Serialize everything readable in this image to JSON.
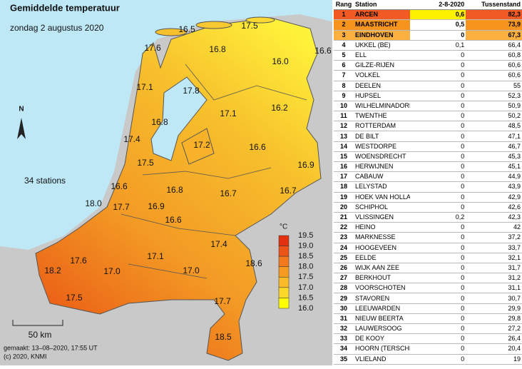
{
  "map": {
    "title": "Gemiddelde temperatuur",
    "subtitle": "zondag 2 augustus 2020",
    "stations_note": "34 stations",
    "north": "N",
    "scale": "50 km",
    "made": "gemaakt: 13–08–2020, 17:55 UT",
    "copyright": "(c) 2020, KNMI",
    "labels": [
      "16.5",
      "17.5",
      "16.6",
      "17.6",
      "16.8",
      "16.0",
      "17.1",
      "17.8",
      "16.2",
      "17.1",
      "16.8",
      "17.4",
      "17.2",
      "16.6",
      "17.5",
      "16.9",
      "16.6",
      "16.8",
      "16.7",
      "16.7",
      "18.0",
      "17.7",
      "16.9",
      "16.6",
      "17.1",
      "17.4",
      "18.6",
      "17.6",
      "18.2",
      "17.0",
      "17.0",
      "17.7",
      "17.5",
      "18.5"
    ],
    "legend": {
      "unit": "°C",
      "ticks": [
        "19.5",
        "19.0",
        "18.5",
        "18.0",
        "17.5",
        "17.0",
        "16.5",
        "16.0"
      ]
    }
  },
  "table": {
    "header": [
      "Rang",
      "Station",
      "2-8-2020",
      "Tussenstand"
    ],
    "rows": [
      [
        "1",
        "ARCEN",
        "0,6",
        "82,3"
      ],
      [
        "2",
        "MAASTRICHT",
        "0,5",
        "73,9"
      ],
      [
        "3",
        "EINDHOVEN",
        "0",
        "67,3"
      ],
      [
        "4",
        "UKKEL (BE)",
        "0,1",
        "66,4"
      ],
      [
        "5",
        "ELL",
        "0",
        "60,8"
      ],
      [
        "6",
        "GILZE-RIJEN",
        "0",
        "60,6"
      ],
      [
        "7",
        "VOLKEL",
        "0",
        "60,6"
      ],
      [
        "8",
        "DEELEN",
        "0",
        "55"
      ],
      [
        "9",
        "HUPSEL",
        "0",
        "52,3"
      ],
      [
        "10",
        "WILHELMINADORP",
        "0",
        "50,9"
      ],
      [
        "11",
        "TWENTHE",
        "0",
        "50,2"
      ],
      [
        "12",
        "ROTTERDAM",
        "0",
        "48,5"
      ],
      [
        "13",
        "DE BILT",
        "0",
        "47,1"
      ],
      [
        "14",
        "WESTDORPE",
        "0",
        "46,7"
      ],
      [
        "15",
        "WOENSDRECHT",
        "0",
        "45,3"
      ],
      [
        "16",
        "HERWIJNEN",
        "0",
        "45,1"
      ],
      [
        "17",
        "CABAUW",
        "0",
        "44,9"
      ],
      [
        "18",
        "LELYSTAD",
        "0",
        "43,9"
      ],
      [
        "19",
        "HOEK VAN HOLLAND",
        "0",
        "42,9"
      ],
      [
        "20",
        "SCHIPHOL",
        "0",
        "42,6"
      ],
      [
        "21",
        "VLISSINGEN",
        "0,2",
        "42,3"
      ],
      [
        "22",
        "HEINO",
        "0",
        "42"
      ],
      [
        "23",
        "MARKNESSE",
        "0",
        "37,2"
      ],
      [
        "24",
        "HOOGEVEEN",
        "0",
        "33,7"
      ],
      [
        "25",
        "EELDE",
        "0",
        "32,1"
      ],
      [
        "26",
        "WIJK AAN ZEE",
        "0",
        "31,7"
      ],
      [
        "27",
        "BERKHOUT",
        "0",
        "31,2"
      ],
      [
        "28",
        "VOORSCHOTEN",
        "0",
        "31,1"
      ],
      [
        "29",
        "STAVOREN",
        "0",
        "30,7"
      ],
      [
        "30",
        "LEEUWARDEN",
        "0",
        "29,9"
      ],
      [
        "31",
        "NIEUW BEERTA",
        "0",
        "29,8"
      ],
      [
        "32",
        "LAUWERSOOG",
        "0",
        "27,2"
      ],
      [
        "33",
        "DE KOOY",
        "0",
        "26,4"
      ],
      [
        "34",
        "HOORN (TERSCHELLING)",
        "0",
        "20,4"
      ],
      [
        "35",
        "VLIELAND",
        "0",
        "19"
      ]
    ]
  }
}
